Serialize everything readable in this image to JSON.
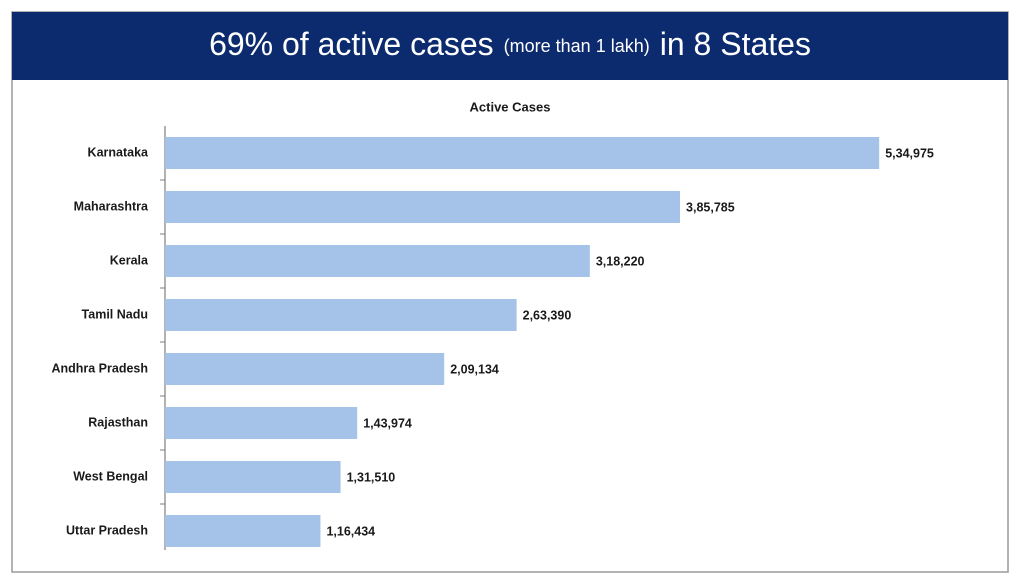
{
  "chart_data": {
    "type": "bar",
    "orientation": "horizontal",
    "title_parts": [
      "69% of active cases",
      "(more than 1 lakh)",
      "in 8 States"
    ],
    "chart_title": "Active Cases",
    "categories": [
      "Karnataka",
      "Maharashtra",
      "Kerala",
      "Tamil Nadu",
      "Andhra Pradesh",
      "Rajasthan",
      "West Bengal",
      "Uttar Pradesh"
    ],
    "values": [
      534975,
      385785,
      318220,
      263390,
      209134,
      143974,
      131510,
      116434
    ],
    "value_labels": [
      "5,34,975",
      "3,85,785",
      "3,18,220",
      "2,63,390",
      "2,09,134",
      "1,43,974",
      "1,31,510",
      "1,16,434"
    ],
    "color": "#a5c3e8",
    "xlim": [
      0,
      600000
    ]
  }
}
